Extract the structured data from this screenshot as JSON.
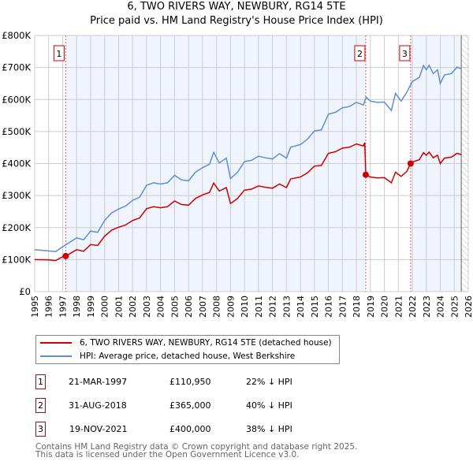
{
  "title": "6, TWO RIVERS WAY, NEWBURY, RG14 5TE",
  "subtitle": "Price paid vs. HM Land Registry's House Price Index (HPI)",
  "chart_data": {
    "type": "line",
    "title": "6, TWO RIVERS WAY, NEWBURY, RG14 5TE",
    "subtitle": "Price paid vs. HM Land Registry's House Price Index (HPI)",
    "xlim": [
      1995,
      2026
    ],
    "ylim": [
      0,
      800000
    ],
    "x_ticks": [
      "1995",
      "1996",
      "1997",
      "1998",
      "1999",
      "2000",
      "2001",
      "2002",
      "2003",
      "2004",
      "2005",
      "2006",
      "2007",
      "2008",
      "2009",
      "2010",
      "2011",
      "2012",
      "2013",
      "2014",
      "2015",
      "2016",
      "2017",
      "2018",
      "2019",
      "2020",
      "2021",
      "2022",
      "2023",
      "2024",
      "2025",
      "2026"
    ],
    "y_ticks": [
      {
        "v": 0,
        "label": "£0"
      },
      {
        "v": 100000,
        "label": "£100K"
      },
      {
        "v": 200000,
        "label": "£200K"
      },
      {
        "v": 300000,
        "label": "£300K"
      },
      {
        "v": 400000,
        "label": "£400K"
      },
      {
        "v": 500000,
        "label": "£500K"
      },
      {
        "v": 600000,
        "label": "£600K"
      },
      {
        "v": 700000,
        "label": "£700K"
      },
      {
        "v": 800000,
        "label": "£800K"
      }
    ],
    "grid": true,
    "series": [
      {
        "name": "6, TWO RIVERS WAY, NEWBURY, RG14 5TE (detached house)",
        "color": "#cc0000",
        "x": [
          1995,
          1996,
          1996.5,
          1997,
          1997.22,
          1998,
          1998.5,
          1999,
          1999.5,
          2000,
          2000.5,
          2001,
          2001.5,
          2002,
          2002.5,
          2003,
          2003.5,
          2004,
          2004.5,
          2005,
          2005.5,
          2006,
          2006.5,
          2007,
          2007.5,
          2007.8,
          2008.2,
          2008.7,
          2009,
          2009.5,
          2010,
          2010.5,
          2011,
          2011.5,
          2012,
          2012.5,
          2013,
          2013.3,
          2014,
          2014.5,
          2015,
          2015.5,
          2016,
          2016.5,
          2017,
          2017.5,
          2018,
          2018.5,
          2018.6,
          2018.67,
          2019,
          2019.5,
          2020,
          2020.5,
          2020.8,
          2021.2,
          2021.6,
          2021.88,
          2022,
          2022.5,
          2022.8,
          2023,
          2023.2,
          2023.5,
          2023.8,
          2024,
          2024.3,
          2024.8,
          2025.2,
          2025.5
        ],
        "y": [
          100000,
          99000,
          97000,
          109000,
          110950,
          131000,
          126000,
          147000,
          144000,
          173000,
          192000,
          201000,
          208000,
          222000,
          230000,
          259000,
          265000,
          262000,
          265000,
          283000,
          272000,
          270000,
          291000,
          302000,
          310000,
          339000,
          314000,
          325000,
          275000,
          291000,
          317000,
          320000,
          330000,
          326000,
          323000,
          336000,
          325000,
          352000,
          358000,
          371000,
          392000,
          394000,
          432000,
          437000,
          448000,
          451000,
          461000,
          455000,
          465000,
          365000,
          358000,
          355000,
          356000,
          340000,
          373000,
          360000,
          375000,
          400000,
          405000,
          412000,
          434000,
          426000,
          436000,
          418000,
          426000,
          400000,
          417000,
          420000,
          432000,
          428000
        ]
      },
      {
        "name": "HPI: Average price, detached house, West Berkshire",
        "color": "#5b8fd0",
        "x": [
          1995,
          1996,
          1996.5,
          1997,
          1998,
          1998.5,
          1999,
          1999.5,
          2000,
          2000.5,
          2001,
          2001.5,
          2002,
          2002.5,
          2003,
          2003.5,
          2004,
          2004.5,
          2005,
          2005.5,
          2006,
          2006.5,
          2007,
          2007.5,
          2007.8,
          2008.2,
          2008.7,
          2009,
          2009.5,
          2010,
          2010.5,
          2011,
          2011.5,
          2012,
          2012.5,
          2013,
          2013.3,
          2014,
          2014.5,
          2015,
          2015.5,
          2016,
          2016.5,
          2017,
          2017.5,
          2018,
          2018.5,
          2018.7,
          2019,
          2019.5,
          2020,
          2020.5,
          2020.8,
          2021.2,
          2021.6,
          2022,
          2022.5,
          2022.8,
          2023,
          2023.2,
          2023.5,
          2023.8,
          2024,
          2024.3,
          2024.8,
          2025.2,
          2025.5
        ],
        "y": [
          131000,
          127000,
          125000,
          140000,
          168000,
          162000,
          189000,
          185000,
          222000,
          246000,
          258000,
          267000,
          285000,
          295000,
          332000,
          340000,
          336000,
          340000,
          363000,
          349000,
          346000,
          373000,
          387000,
          398000,
          435000,
          402000,
          417000,
          353000,
          373000,
          406000,
          410000,
          423000,
          418000,
          414000,
          431000,
          417000,
          451000,
          459000,
          476000,
          502000,
          505000,
          554000,
          560000,
          574000,
          578000,
          591000,
          583000,
          607000,
          595000,
          591000,
          592000,
          566000,
          619000,
          595000,
          622000,
          656000,
          669000,
          706000,
          693000,
          707000,
          681000,
          693000,
          650000,
          677000,
          681000,
          701000,
          696000
        ]
      }
    ],
    "sales": [
      {
        "label": "1",
        "x": 1997.22,
        "y": 110950
      },
      {
        "label": "2",
        "x": 2018.67,
        "y": 365000
      },
      {
        "label": "3",
        "x": 2021.88,
        "y": 400000
      }
    ],
    "legend_placement": "bottom"
  },
  "legend": [
    "6, TWO RIVERS WAY, NEWBURY, RG14 5TE (detached house)",
    "HPI: Average price, detached house, West Berkshire"
  ],
  "table": [
    {
      "n": "1",
      "date": "21-MAR-1997",
      "price": "£110,950",
      "hpi": "22% ↓ HPI"
    },
    {
      "n": "2",
      "date": "31-AUG-2018",
      "price": "£365,000",
      "hpi": "40% ↓ HPI"
    },
    {
      "n": "3",
      "date": "19-NOV-2021",
      "price": "£400,000",
      "hpi": "38% ↓ HPI"
    }
  ],
  "footer": [
    "Contains HM Land Registry data © Crown copyright and database right 2025.",
    "This data is licensed under the Open Government Licence v3.0."
  ]
}
